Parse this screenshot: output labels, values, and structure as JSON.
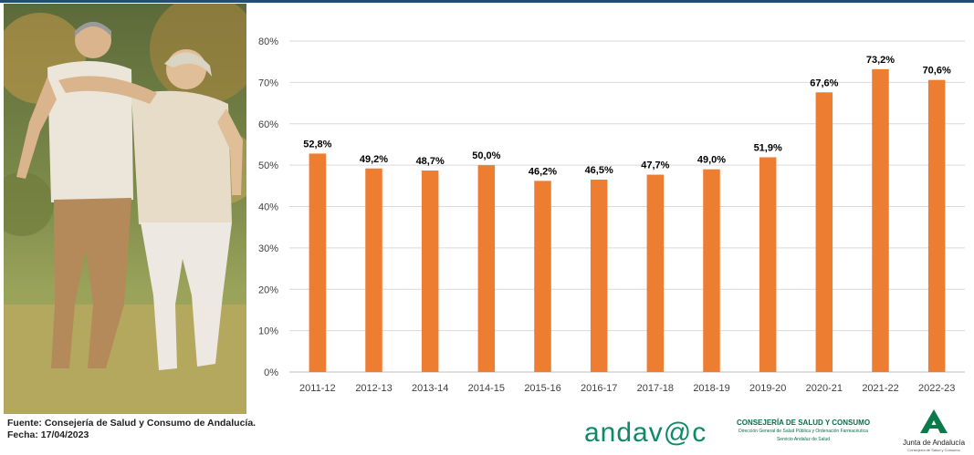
{
  "chart_data": {
    "type": "bar",
    "categories": [
      "2011-12",
      "2012-13",
      "2013-14",
      "2014-15",
      "2015-16",
      "2016-17",
      "2017-18",
      "2018-19",
      "2019-20",
      "2020-21",
      "2021-22",
      "2022-23"
    ],
    "values": [
      52.8,
      49.2,
      48.7,
      50.0,
      46.2,
      46.5,
      47.7,
      49.0,
      51.9,
      67.6,
      73.2,
      70.6
    ],
    "data_labels": [
      "52,8%",
      "49,2%",
      "48,7%",
      "50,0%",
      "46,2%",
      "46,5%",
      "47,7%",
      "49,0%",
      "51,9%",
      "67,6%",
      "73,2%",
      "70,6%"
    ],
    "y_ticks": [
      "0%",
      "10%",
      "20%",
      "30%",
      "40%",
      "50%",
      "60%",
      "70%",
      "80%"
    ],
    "ylim": [
      0,
      80
    ],
    "grid": true,
    "legend": "none",
    "bar_color": "#ed7d31"
  },
  "footer": {
    "source_line": "Fuente: Consejería de Salud y Consumo de Andalucía.",
    "date_line": "Fecha: 17/04/2023"
  },
  "logos": {
    "andavac": "andav@c",
    "consejeria_title": "CONSEJERÍA DE SALUD Y CONSUMO",
    "consejeria_sub1": "Dirección General de Salud Pública y Ordenación Farmacéutica",
    "consejeria_sub2": "Servicio Andaluz de Salud",
    "junta_name": "Junta de Andalucía",
    "junta_sub": "Consejería de Salud y Consumo"
  },
  "colors": {
    "header_rule": "#1f4e79",
    "logo_green": "#0f8a67"
  }
}
